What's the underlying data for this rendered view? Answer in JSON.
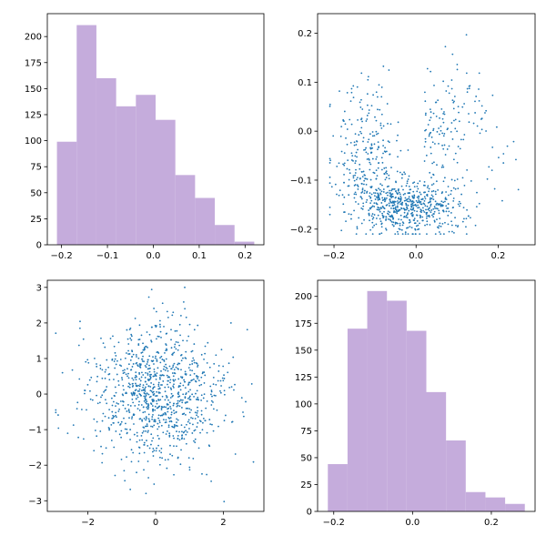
{
  "colors": {
    "hist": "#c5acdc",
    "scatter": "#1f77b4",
    "axis": "#000000"
  },
  "chart_data": [
    {
      "type": "bar",
      "position": "top-left",
      "bin_edges": [
        -0.21,
        -0.167,
        -0.124,
        -0.081,
        -0.038,
        0.005,
        0.048,
        0.091,
        0.134,
        0.177,
        0.22
      ],
      "values": [
        99,
        211,
        160,
        133,
        144,
        120,
        67,
        45,
        19,
        3
      ],
      "xlim": [
        -0.231,
        0.241
      ],
      "ylim": [
        0,
        222
      ],
      "xticks": [
        -0.2,
        -0.1,
        0.0,
        0.1,
        0.2
      ],
      "xtick_labels": [
        "−0.2",
        "−0.1",
        "0.0",
        "0.1",
        "0.2"
      ],
      "yticks": [
        0,
        25,
        50,
        75,
        100,
        125,
        150,
        175,
        200
      ],
      "ytick_labels": [
        "0",
        "25",
        "50",
        "75",
        "100",
        "125",
        "150",
        "175",
        "200"
      ],
      "color": "#c5acdc"
    },
    {
      "type": "scatter",
      "position": "top-right",
      "n_points": 1000,
      "description": "x ~ U(-0.21, 0.26) skewed left, y in [-0.21, 0.23], dense at bottom-center",
      "xlim": [
        -0.24,
        0.29
      ],
      "ylim": [
        -0.232,
        0.24
      ],
      "xticks": [
        -0.2,
        0.0,
        0.2
      ],
      "xtick_labels": [
        "−0.2",
        "0.0",
        "0.2"
      ],
      "yticks": [
        -0.2,
        -0.1,
        0.0,
        0.1,
        0.2
      ],
      "ytick_labels": [
        "−0.2",
        "−0.1",
        "0.0",
        "0.1",
        "0.2"
      ],
      "color": "#1f77b4"
    },
    {
      "type": "scatter",
      "position": "bottom-left",
      "n_points": 1000,
      "description": "standard normal cloud",
      "xlim": [
        -3.2,
        3.2
      ],
      "ylim": [
        -3.3,
        3.2
      ],
      "xticks": [
        -2,
        0,
        2
      ],
      "xtick_labels": [
        "−2",
        "0",
        "2"
      ],
      "yticks": [
        -3,
        -2,
        -1,
        0,
        1,
        2,
        3
      ],
      "ytick_labels": [
        "−3",
        "−2",
        "−1",
        "0",
        "1",
        "2",
        "3"
      ],
      "color": "#1f77b4"
    },
    {
      "type": "bar",
      "position": "bottom-right",
      "bin_edges": [
        -0.215,
        -0.165,
        -0.115,
        -0.065,
        -0.015,
        0.035,
        0.085,
        0.135,
        0.185,
        0.235,
        0.285
      ],
      "values": [
        44,
        170,
        205,
        196,
        168,
        111,
        66,
        18,
        13,
        7
      ],
      "xlim": [
        -0.241,
        0.311
      ],
      "ylim": [
        0,
        215
      ],
      "xticks": [
        -0.2,
        0.0,
        0.2
      ],
      "xtick_labels": [
        "−0.2",
        "0.0",
        "0.2"
      ],
      "yticks": [
        0,
        25,
        50,
        75,
        100,
        125,
        150,
        175,
        200
      ],
      "ytick_labels": [
        "0",
        "25",
        "50",
        "75",
        "100",
        "125",
        "150",
        "175",
        "200"
      ],
      "color": "#c5acdc"
    }
  ]
}
